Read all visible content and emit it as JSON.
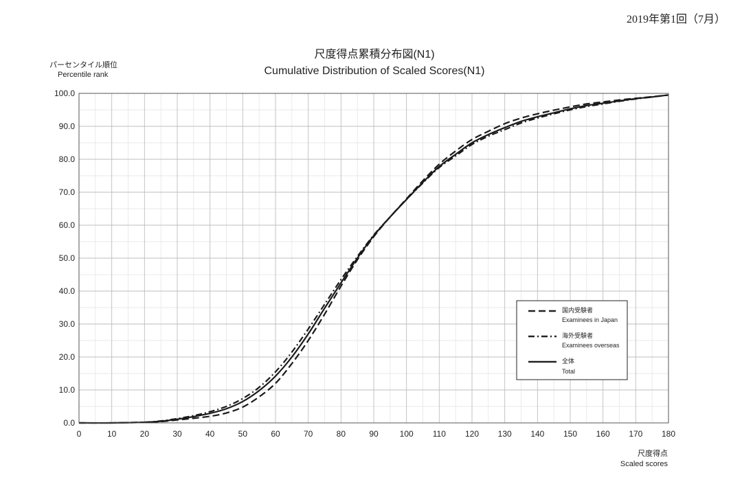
{
  "page_header": "2019年第1回（7月）",
  "chart_data": {
    "type": "line",
    "title": "尺度得点累積分布図(N1)",
    "subtitle": "Cumulative Distribution of Scaled Scores(N1)",
    "ylabel": "パーセンタイル順位",
    "ylabel_en": "Percentile rank",
    "xlabel": "尺度得点",
    "xlabel_en": "Scaled scores",
    "xlim": [
      0,
      180
    ],
    "ylim": [
      0,
      100
    ],
    "x_ticks": [
      0,
      10,
      20,
      30,
      40,
      50,
      60,
      70,
      80,
      90,
      100,
      110,
      120,
      130,
      140,
      150,
      160,
      170,
      180
    ],
    "y_ticks": [
      "0.0",
      "10.0",
      "20.0",
      "30.0",
      "40.0",
      "50.0",
      "60.0",
      "70.0",
      "80.0",
      "90.0",
      "100.0"
    ],
    "grid": true,
    "legend_position": "lower-right",
    "series": [
      {
        "name": "国内受験者",
        "name_en": "Examinees in Japan",
        "style": "dashed",
        "x": [
          0,
          10,
          20,
          25,
          30,
          35,
          40,
          45,
          50,
          55,
          60,
          65,
          70,
          75,
          80,
          85,
          90,
          95,
          100,
          105,
          110,
          115,
          120,
          125,
          130,
          135,
          140,
          145,
          150,
          155,
          160,
          165,
          170,
          175,
          180
        ],
        "y": [
          0,
          0,
          0.2,
          0.4,
          0.9,
          1.4,
          2.0,
          3.0,
          4.8,
          7.9,
          12.0,
          18.0,
          25.0,
          33.0,
          41.5,
          49.5,
          56.5,
          62.5,
          68.0,
          73.5,
          78.5,
          82.5,
          86.0,
          88.5,
          90.8,
          92.5,
          93.8,
          94.9,
          95.9,
          96.8,
          97.4,
          98.0,
          98.5,
          99.0,
          99.5
        ]
      },
      {
        "name": "海外受験者",
        "name_en": "Examinees overseas",
        "style": "dash-dot",
        "x": [
          0,
          10,
          20,
          25,
          30,
          35,
          40,
          45,
          50,
          55,
          60,
          65,
          70,
          75,
          80,
          85,
          90,
          95,
          100,
          105,
          110,
          115,
          120,
          125,
          130,
          135,
          140,
          145,
          150,
          155,
          160,
          165,
          170,
          175,
          180
        ],
        "y": [
          0,
          0,
          0.2,
          0.6,
          1.3,
          2.2,
          3.4,
          5.0,
          7.4,
          10.8,
          15.5,
          21.5,
          28.5,
          36.0,
          43.5,
          50.5,
          57.0,
          62.5,
          67.8,
          72.8,
          77.5,
          81.0,
          84.5,
          87.0,
          89.0,
          91.0,
          92.5,
          93.8,
          95.0,
          96.0,
          96.8,
          97.6,
          98.3,
          98.9,
          99.5
        ]
      },
      {
        "name": "全体",
        "name_en": "Total",
        "style": "solid",
        "x": [
          0,
          10,
          20,
          25,
          30,
          35,
          40,
          45,
          50,
          55,
          60,
          65,
          70,
          75,
          80,
          85,
          90,
          95,
          100,
          105,
          110,
          115,
          120,
          125,
          130,
          135,
          140,
          145,
          150,
          155,
          160,
          165,
          170,
          175,
          180
        ],
        "y": [
          0,
          0,
          0.2,
          0.5,
          1.1,
          1.9,
          2.9,
          4.3,
          6.5,
          9.8,
          14.2,
          20.0,
          27.0,
          34.8,
          42.5,
          50.0,
          56.8,
          62.5,
          67.8,
          73.0,
          77.8,
          81.5,
          85.0,
          87.5,
          89.6,
          91.5,
          92.9,
          94.1,
          95.3,
          96.3,
          97.0,
          97.7,
          98.4,
          98.9,
          99.5
        ]
      }
    ]
  }
}
